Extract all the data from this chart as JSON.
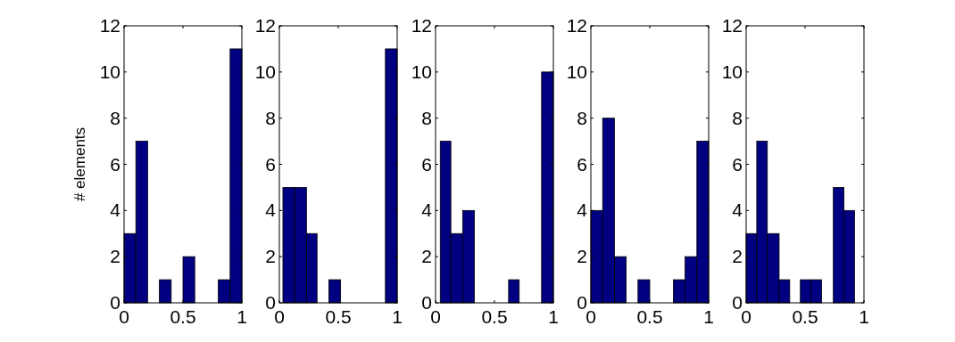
{
  "chart_data": [
    {
      "type": "histogram",
      "ylabel": "# elements",
      "bins": [
        0,
        0.1,
        0.2,
        0.3,
        0.4,
        0.5,
        0.6,
        0.7,
        0.8,
        0.9,
        1
      ],
      "values": [
        3,
        7,
        0,
        1,
        0,
        2,
        0,
        0,
        1,
        11
      ],
      "color": "#000080",
      "xlim": [
        0,
        1
      ],
      "ylim": [
        0,
        12
      ],
      "xticks": [
        0,
        0.5,
        1
      ],
      "yticks": [
        0,
        2,
        4,
        6,
        8,
        10,
        12
      ],
      "grid": false
    },
    {
      "type": "histogram",
      "bins": [
        0.03,
        0.13,
        0.23,
        0.32,
        0.42,
        0.52,
        0.9,
        1
      ],
      "values": [
        5,
        5,
        3,
        0,
        1,
        0,
        11
      ],
      "color": "#000080",
      "xlim": [
        0,
        1
      ],
      "ylim": [
        0,
        12
      ],
      "xticks": [
        0,
        0.5,
        1
      ],
      "yticks": [
        0,
        2,
        4,
        6,
        8,
        10,
        12
      ],
      "grid": false
    },
    {
      "type": "histogram",
      "bins": [
        0.04,
        0.13,
        0.23,
        0.33,
        0.62,
        0.71,
        0.9,
        1
      ],
      "values": [
        7,
        3,
        4,
        0,
        1,
        0,
        10
      ],
      "color": "#000080",
      "xlim": [
        0,
        1
      ],
      "ylim": [
        0,
        12
      ],
      "xticks": [
        0,
        0.5,
        1
      ],
      "yticks": [
        0,
        2,
        4,
        6,
        8,
        10,
        12
      ],
      "grid": false
    },
    {
      "type": "histogram",
      "bins": [
        0,
        0.1,
        0.2,
        0.3,
        0.4,
        0.5,
        0.6,
        0.7,
        0.8,
        0.9,
        1
      ],
      "values": [
        4,
        8,
        2,
        0,
        1,
        0,
        0,
        1,
        2,
        7
      ],
      "color": "#000080",
      "xlim": [
        0,
        1
      ],
      "ylim": [
        0,
        12
      ],
      "xticks": [
        0,
        0.5,
        1
      ],
      "yticks": [
        0,
        2,
        4,
        6,
        8,
        10,
        12
      ],
      "grid": false
    },
    {
      "type": "histogram",
      "bins": [
        0,
        0.09,
        0.18,
        0.28,
        0.37,
        0.46,
        0.55,
        0.64,
        0.74,
        0.83,
        0.92
      ],
      "values": [
        3,
        7,
        3,
        1,
        0,
        1,
        1,
        0,
        5,
        4
      ],
      "color": "#000080",
      "xlim": [
        0,
        1
      ],
      "ylim": [
        0,
        12
      ],
      "xticks": [
        0,
        0.5,
        1
      ],
      "yticks": [
        0,
        2,
        4,
        6,
        8,
        10,
        12
      ],
      "grid": false
    }
  ]
}
